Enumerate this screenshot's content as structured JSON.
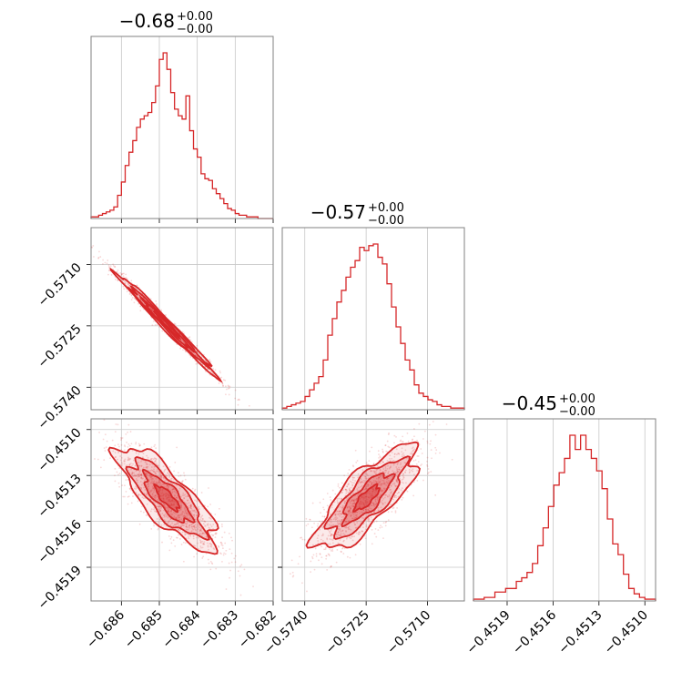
{
  "chart_data": {
    "type": "corner",
    "color": "#d62728",
    "grid": true,
    "parameters": [
      {
        "title_value": "−0.68",
        "title_plus": "+0.00",
        "title_minus": "−0.00",
        "range": [
          -0.6868,
          -0.682
        ],
        "ticks": [
          -0.686,
          -0.685,
          -0.684,
          -0.683,
          -0.682
        ],
        "tick_labels": [
          "−0.686",
          "−0.685",
          "−0.684",
          "−0.683",
          "−0.682"
        ]
      },
      {
        "title_value": "−0.57",
        "title_plus": "+0.00",
        "title_minus": "−0.00",
        "range": [
          -0.57455,
          -0.5701
        ],
        "ticks": [
          -0.574,
          -0.5725,
          -0.571
        ],
        "tick_labels": [
          "−0.5740",
          "−0.5725",
          "−0.5710"
        ]
      },
      {
        "title_value": "−0.45",
        "title_plus": "+0.00",
        "title_minus": "−0.00",
        "range": [
          -0.45212,
          -0.45093
        ],
        "ticks": [
          -0.4519,
          -0.4516,
          -0.4513,
          -0.451
        ],
        "tick_labels": [
          "−0.4519",
          "−0.4516",
          "−0.4513",
          "−0.4510"
        ]
      }
    ],
    "histograms": [
      {
        "param": 0,
        "bin_edges": [
          -0.6868,
          -0.682
        ],
        "counts": [
          1,
          1,
          2,
          3,
          4,
          5,
          7,
          14,
          22,
          32,
          40,
          47,
          55,
          60,
          62,
          64,
          70,
          80,
          96,
          100,
          90,
          76,
          66,
          62,
          60,
          74,
          53,
          42,
          37,
          27,
          24,
          23,
          18,
          15,
          12,
          9,
          6,
          5,
          3,
          2,
          2,
          1,
          1,
          1,
          0,
          0,
          0,
          0
        ]
      },
      {
        "param": 1,
        "bin_edges": [
          -0.57455,
          -0.5701
        ],
        "counts": [
          1,
          2,
          3,
          4,
          5,
          8,
          12,
          16,
          20,
          30,
          45,
          55,
          65,
          72,
          80,
          86,
          90,
          98,
          96,
          99,
          100,
          92,
          88,
          76,
          62,
          50,
          40,
          30,
          24,
          15,
          10,
          8,
          6,
          5,
          3,
          2,
          2,
          1,
          1,
          1
        ]
      },
      {
        "param": 2,
        "bin_edges": [
          -0.45212,
          -0.45093
        ],
        "counts": [
          1,
          1,
          2,
          2,
          5,
          5,
          7,
          7,
          11,
          13,
          16,
          21,
          31,
          41,
          53,
          65,
          72,
          80,
          93,
          85,
          93,
          85,
          80,
          73,
          63,
          46,
          32,
          26,
          15,
          7,
          4,
          2,
          1,
          1
        ]
      }
    ],
    "pairs": [
      {
        "x_param": 0,
        "y_param": 1,
        "correlation": -0.99
      },
      {
        "x_param": 0,
        "y_param": 2,
        "correlation": -0.8
      },
      {
        "x_param": 1,
        "y_param": 2,
        "correlation": 0.78
      }
    ]
  }
}
